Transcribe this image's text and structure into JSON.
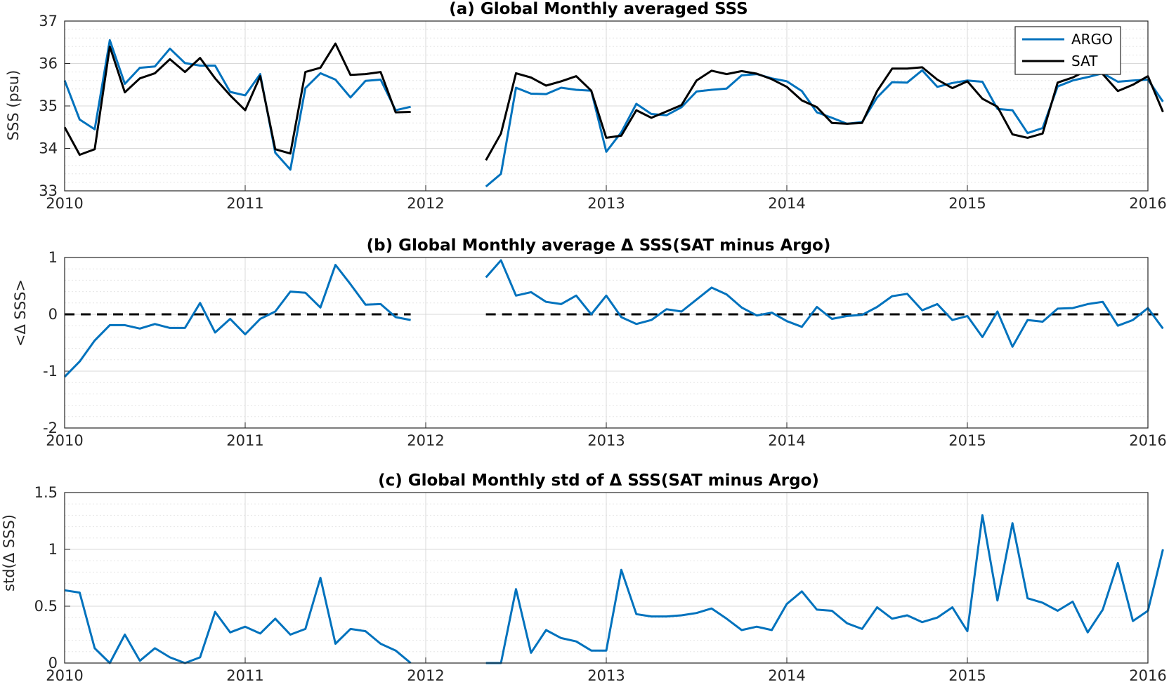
{
  "chart_data": [
    {
      "type": "line",
      "title": "(a) Global Monthly averaged SSS",
      "ylabel": "SSS (psu)",
      "xlim": [
        2010,
        2016
      ],
      "ylim": [
        33,
        37
      ],
      "xticks": [
        "2010",
        "2011",
        "2012",
        "2013",
        "2014",
        "2015",
        "2016"
      ],
      "yticks": [
        "33",
        "34",
        "35",
        "36",
        "37"
      ],
      "legend_position": "top-right",
      "grid": true,
      "zero_line": false,
      "series": [
        {
          "name": "ARGO",
          "color": "#0072BD",
          "segments": [
            {
              "start_year": 2010.0,
              "values": [
                35.6,
                34.68,
                34.45,
                36.55,
                35.52,
                35.9,
                35.93,
                36.35,
                36.01,
                35.95,
                35.95,
                35.33,
                35.25,
                35.75,
                33.9,
                33.5,
                35.42,
                35.77,
                35.62,
                35.2,
                35.59,
                35.62,
                34.9,
                34.98
              ]
            },
            {
              "start_year": 2012.3333,
              "values": [
                33.1,
                33.4,
                35.43,
                35.29,
                35.28,
                35.43,
                35.38,
                35.36,
                33.92,
                34.38,
                35.05,
                34.81,
                34.78,
                34.97,
                35.34,
                35.38,
                35.41,
                35.72,
                35.75,
                35.65,
                35.58,
                35.35,
                34.85,
                34.72,
                34.58,
                34.62,
                35.2,
                35.56,
                35.55,
                35.84,
                35.45,
                35.54,
                35.6,
                35.57,
                34.93,
                34.9,
                34.36,
                34.48,
                35.46,
                35.6,
                35.68,
                35.77,
                35.57,
                35.6,
                35.62,
                35.1
              ]
            }
          ]
        },
        {
          "name": "SAT",
          "color": "#000000",
          "segments": [
            {
              "start_year": 2010.0,
              "values": [
                34.5,
                33.85,
                33.98,
                36.4,
                35.32,
                35.65,
                35.77,
                36.1,
                35.8,
                36.13,
                35.65,
                35.25,
                34.9,
                35.7,
                33.98,
                33.88,
                35.8,
                35.9,
                36.47,
                35.73,
                35.75,
                35.8,
                34.85,
                34.86
              ]
            },
            {
              "start_year": 2012.3333,
              "values": [
                33.72,
                34.35,
                35.77,
                35.67,
                35.48,
                35.58,
                35.7,
                35.36,
                34.25,
                34.3,
                34.9,
                34.72,
                34.87,
                35.02,
                35.6,
                35.83,
                35.75,
                35.82,
                35.76,
                35.63,
                35.45,
                35.13,
                34.97,
                34.6,
                34.58,
                34.6,
                35.35,
                35.88,
                35.88,
                35.91,
                35.62,
                35.42,
                35.58,
                35.17,
                34.98,
                34.33,
                34.25,
                34.35,
                35.55,
                35.67,
                35.85,
                35.75,
                35.35,
                35.5,
                35.7,
                34.86
              ]
            }
          ]
        }
      ]
    },
    {
      "type": "line",
      "title": "(b) Global Monthly average Δ SSS(SAT minus Argo)",
      "ylabel": "<Δ SSS>",
      "xlim": [
        2010,
        2016
      ],
      "ylim": [
        -2,
        1
      ],
      "xticks": [
        "2010",
        "2011",
        "2012",
        "2013",
        "2014",
        "2015",
        "2016"
      ],
      "yticks": [
        "-2",
        "-1",
        "0",
        "1"
      ],
      "grid": true,
      "zero_line": true,
      "series": [
        {
          "color": "#0072BD",
          "segments": [
            {
              "start_year": 2010.0,
              "values": [
                -1.1,
                -0.83,
                -0.46,
                -0.19,
                -0.19,
                -0.25,
                -0.17,
                -0.24,
                -0.24,
                0.2,
                -0.32,
                -0.08,
                -0.35,
                -0.08,
                0.05,
                0.4,
                0.38,
                0.12,
                0.87,
                0.53,
                0.17,
                0.18,
                -0.05,
                -0.1
              ]
            },
            {
              "start_year": 2012.3333,
              "values": [
                0.65,
                0.95,
                0.33,
                0.39,
                0.22,
                0.18,
                0.33,
                0.0,
                0.33,
                -0.05,
                -0.17,
                -0.1,
                0.09,
                0.05,
                0.26,
                0.47,
                0.35,
                0.12,
                -0.02,
                0.03,
                -0.12,
                -0.22,
                0.13,
                -0.08,
                -0.03,
                -0.01,
                0.13,
                0.32,
                0.36,
                0.07,
                0.18,
                -0.1,
                -0.03,
                -0.4,
                0.05,
                -0.57,
                -0.1,
                -0.13,
                0.1,
                0.11,
                0.18,
                0.22,
                -0.2,
                -0.1,
                0.11,
                -0.25
              ]
            }
          ]
        }
      ]
    },
    {
      "type": "line",
      "title": "(c) Global Monthly std of Δ SSS(SAT minus Argo)",
      "ylabel": "std(Δ SSS)",
      "xlim": [
        2010,
        2016
      ],
      "ylim": [
        0,
        1.5
      ],
      "xticks": [
        "2010",
        "2011",
        "2012",
        "2013",
        "2014",
        "2015",
        "2016"
      ],
      "yticks": [
        "0",
        "0.5",
        "1",
        "1.5"
      ],
      "grid": true,
      "zero_line": false,
      "series": [
        {
          "color": "#0072BD",
          "segments": [
            {
              "start_year": 2010.0,
              "values": [
                0.64,
                0.62,
                0.13,
                0.0,
                0.25,
                0.02,
                0.13,
                0.05,
                0.0,
                0.05,
                0.45,
                0.27,
                0.32,
                0.26,
                0.39,
                0.25,
                0.3,
                0.75,
                0.17,
                0.3,
                0.28,
                0.17,
                0.11,
                0.0
              ]
            },
            {
              "start_year": 2012.3333,
              "values": [
                0.0,
                0.0,
                0.65,
                0.09,
                0.29,
                0.22,
                0.19,
                0.11,
                0.11,
                0.82,
                0.43,
                0.41,
                0.41,
                0.42,
                0.44,
                0.48,
                0.39,
                0.29,
                0.32,
                0.29,
                0.52,
                0.63,
                0.47,
                0.46,
                0.35,
                0.3,
                0.49,
                0.39,
                0.42,
                0.36,
                0.4,
                0.49,
                0.28,
                1.3,
                0.55,
                1.23,
                0.57,
                0.53,
                0.46,
                0.54,
                0.27,
                0.47,
                0.88,
                0.37,
                0.46,
                1.0
              ]
            }
          ]
        }
      ]
    }
  ]
}
